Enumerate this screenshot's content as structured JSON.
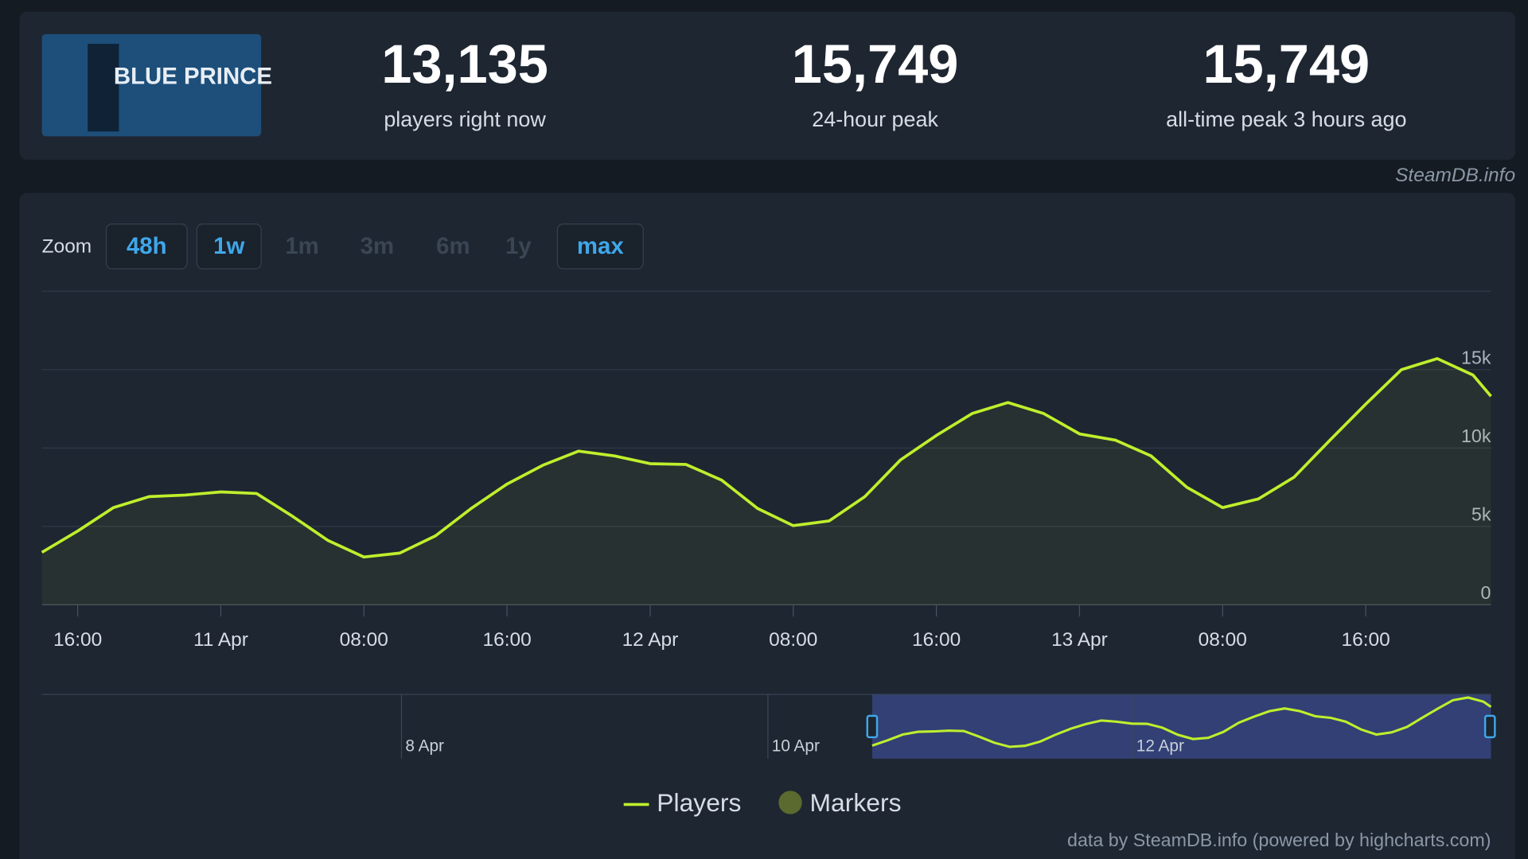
{
  "header": {
    "logo": "BLUE PRINCE",
    "stats": [
      {
        "value": "13,135",
        "label": "players right now"
      },
      {
        "value": "15,749",
        "label": "24-hour peak"
      },
      {
        "value": "15,749",
        "label": "all-time peak 3 hours ago"
      }
    ],
    "source": "SteamDB.info"
  },
  "zoom": {
    "label": "Zoom",
    "buttons": [
      {
        "label": "48h",
        "active": true
      },
      {
        "label": "1w",
        "active": true
      },
      {
        "label": "1m",
        "active": false
      },
      {
        "label": "3m",
        "active": false
      },
      {
        "label": "6m",
        "active": false
      },
      {
        "label": "1y",
        "active": false
      },
      {
        "label": "max",
        "active": true
      }
    ]
  },
  "chart_data": {
    "type": "line",
    "x": [
      14,
      16,
      18,
      20,
      22,
      24,
      26,
      28,
      30,
      32,
      34,
      36,
      38,
      40,
      42,
      44,
      46,
      48,
      50,
      52,
      54,
      56,
      58,
      60,
      62,
      64,
      66,
      68,
      70,
      72,
      74,
      76,
      78,
      80,
      82,
      84,
      86,
      88,
      90,
      92,
      94,
      95
    ],
    "series": [
      {
        "name": "Players",
        "color": "#bfef2c",
        "values": [
          3350,
          4700,
          6200,
          6900,
          7000,
          7200,
          7100,
          5650,
          4100,
          3050,
          3300,
          4400,
          6150,
          7700,
          8900,
          9800,
          9500,
          9000,
          8950,
          7950,
          6150,
          5050,
          5350,
          6900,
          9250,
          10800,
          12200,
          12900,
          12200,
          10900,
          10500,
          9500,
          7500,
          6200,
          6750,
          8150,
          10500,
          12800,
          15000,
          15700,
          14650,
          13300
        ]
      }
    ],
    "xlim": [
      14,
      95
    ],
    "xticks": [
      {
        "value": 16,
        "label": "16:00"
      },
      {
        "value": 24,
        "label": "11 Apr"
      },
      {
        "value": 32,
        "label": "08:00"
      },
      {
        "value": 40,
        "label": "16:00"
      },
      {
        "value": 48,
        "label": "12 Apr"
      },
      {
        "value": 56,
        "label": "08:00"
      },
      {
        "value": 64,
        "label": "16:00"
      },
      {
        "value": 72,
        "label": "13 Apr"
      },
      {
        "value": 80,
        "label": "08:00"
      },
      {
        "value": 88,
        "label": "16:00"
      }
    ],
    "ylim": [
      0,
      20000
    ],
    "yticks": [
      0,
      {
        "value": 5000,
        "label": "5k"
      },
      {
        "value": 10000,
        "label": "10k"
      },
      {
        "value": 15000,
        "label": "15k"
      }
    ],
    "grid": true,
    "legend_markers": "Markers",
    "navigator_labels": [
      "8 Apr",
      "10 Apr",
      "12 Apr"
    ],
    "credit": "data by SteamDB.info (powered by highcharts.com)"
  }
}
